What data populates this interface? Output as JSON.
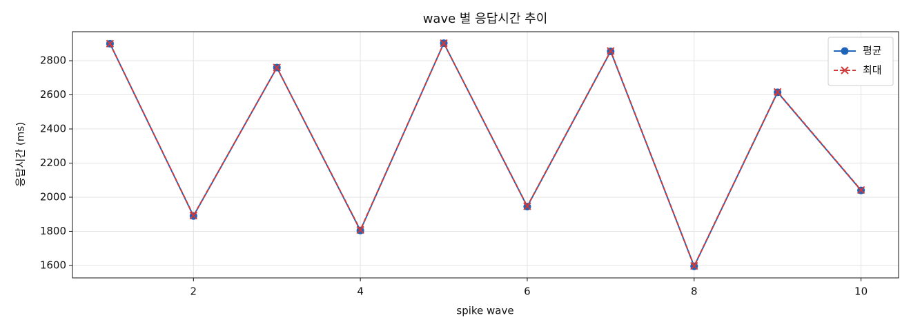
{
  "chart_data": {
    "type": "line",
    "title": "wave 별 응답시간 추이",
    "x_label": "spike wave",
    "y_label": "응답시간 (ms)",
    "x": [
      1,
      2,
      3,
      4,
      5,
      6,
      7,
      8,
      9,
      10
    ],
    "series": [
      {
        "name": "평균",
        "color": "#1f64b8",
        "linestyle": "solid",
        "marker": "circle",
        "values": [
          2900,
          1890,
          2760,
          1805,
          2903,
          1945,
          2855,
          1595,
          2615,
          2040
        ]
      },
      {
        "name": "최대",
        "color": "#d03a3a",
        "linestyle": "dashed",
        "marker": "x",
        "values": [
          2900,
          1892,
          2760,
          1808,
          2903,
          1947,
          2857,
          1597,
          2617,
          2042
        ]
      }
    ],
    "xlim": [
      0.55,
      10.45
    ],
    "ylim": [
      1527,
      2970
    ],
    "xticks": [
      2,
      4,
      6,
      8,
      10
    ],
    "yticks": [
      1600,
      1800,
      2000,
      2200,
      2400,
      2600,
      2800
    ],
    "grid": true,
    "legend": "upper right"
  }
}
